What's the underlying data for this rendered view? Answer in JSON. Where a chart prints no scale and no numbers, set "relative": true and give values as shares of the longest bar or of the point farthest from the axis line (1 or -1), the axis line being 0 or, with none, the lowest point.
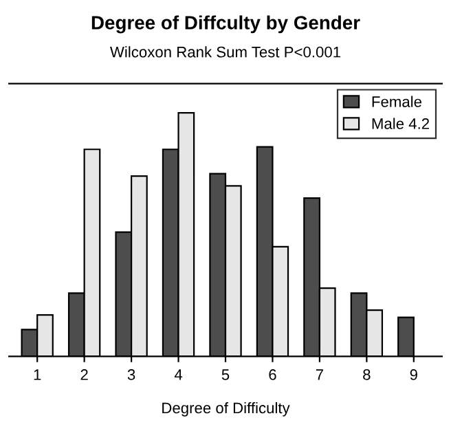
{
  "chart_data": {
    "type": "bar",
    "title": "Degree of Diffculty by Gender",
    "subtitle": "Wilcoxon Rank Sum Test P<0.001",
    "xlabel": "Degree of Difficulty",
    "categories": [
      "1",
      "2",
      "3",
      "4",
      "5",
      "6",
      "7",
      "8",
      "9"
    ],
    "relative": true,
    "legend": "top right",
    "grid": false,
    "series": [
      {
        "name": "Female",
        "color": "#4d4d4d",
        "values": [
          0.11,
          0.26,
          0.51,
          0.85,
          0.75,
          0.86,
          0.65,
          0.26,
          0.16
        ]
      },
      {
        "name": "Male 4.2",
        "color": "#e6e6e6",
        "values": [
          0.17,
          0.85,
          0.74,
          1,
          0.7,
          0.45,
          0.28,
          0.19,
          null
        ]
      }
    ]
  }
}
